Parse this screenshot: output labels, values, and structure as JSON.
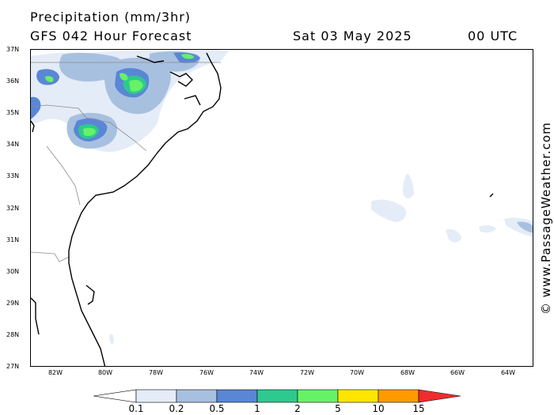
{
  "header": {
    "title": "Precipitation (mm/3hr)",
    "subtitle": "GFS 042 Hour Forecast",
    "valid_date": "Sat 03 May 2025",
    "valid_time": "00 UTC"
  },
  "map": {
    "lat_labels": [
      "37N",
      "36N",
      "35N",
      "34N",
      "33N",
      "32N",
      "31N",
      "30N",
      "29N",
      "28N",
      "27N"
    ],
    "lon_labels": [
      "82W",
      "80W",
      "78W",
      "76W",
      "74W",
      "72W",
      "70W",
      "68W",
      "66W",
      "64W"
    ],
    "colors": {
      "coast": "#000000",
      "border": "#8c8c8c"
    }
  },
  "legend": {
    "labels": [
      "0.1",
      "0.2",
      "0.5",
      "1",
      "2",
      "5",
      "10",
      "15"
    ],
    "colors": [
      "#ffffff",
      "#e4ecf7",
      "#a8c0e0",
      "#5a86d6",
      "#2ec98e",
      "#66f266",
      "#ffe600",
      "#ff9a00",
      "#ef2d2d"
    ]
  },
  "credit": "© www.PassageWeather.com"
}
